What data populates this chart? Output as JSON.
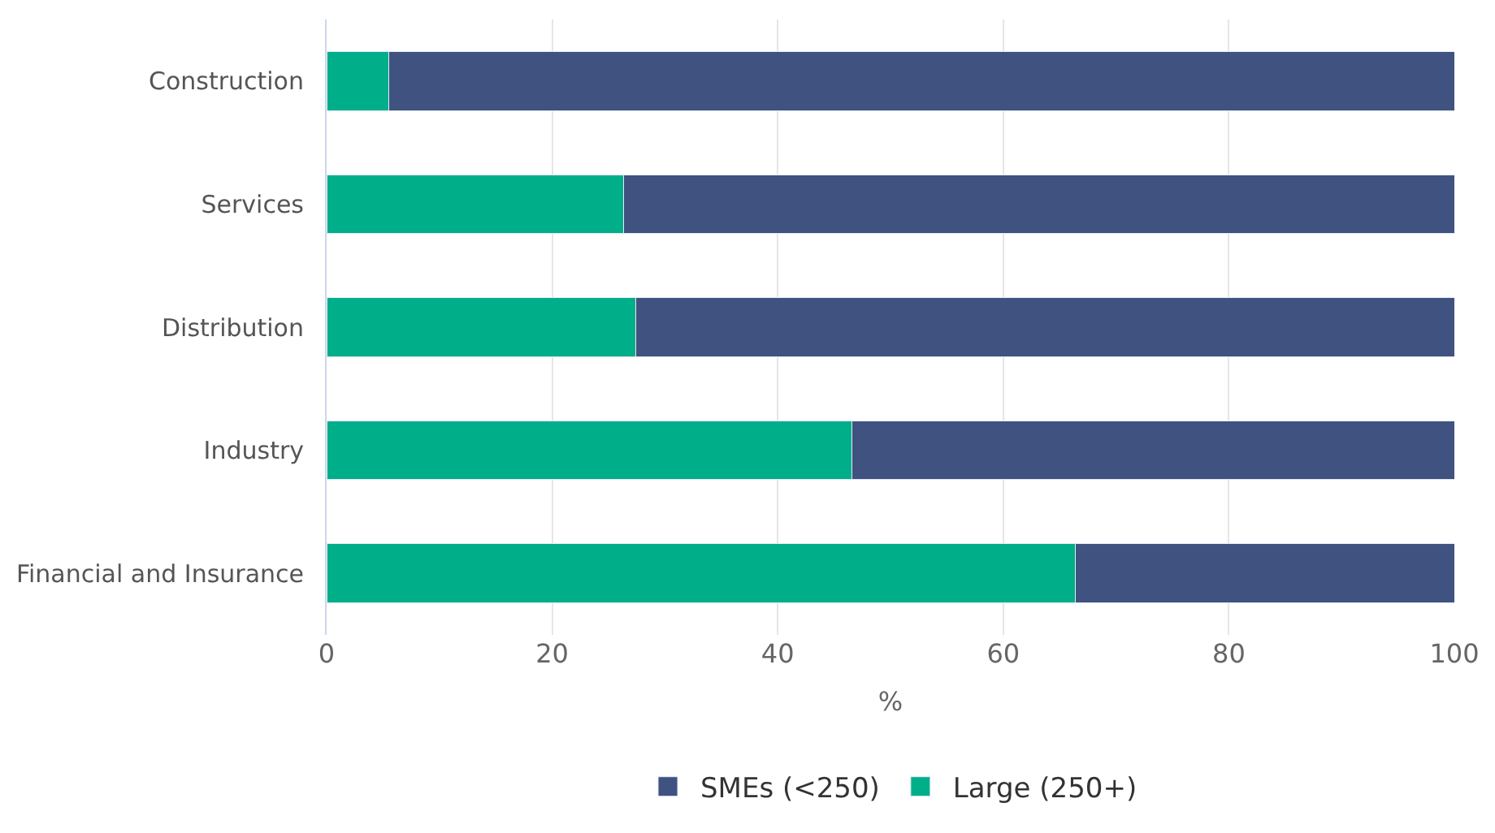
{
  "chart_data": {
    "type": "bar",
    "orientation": "horizontal",
    "stacked": true,
    "xlabel": "%",
    "categories": [
      "Construction",
      "Services",
      "Distribution",
      "Industry",
      "Financial and Insurance"
    ],
    "series": [
      {
        "name": "Large (250+)",
        "color": "#00ae8a",
        "values": [
          5.5,
          26.3,
          27.4,
          46.6,
          66.4
        ]
      },
      {
        "name": "SMEs (<250)",
        "color": "#3f5280",
        "values": [
          94.5,
          73.7,
          72.6,
          53.4,
          33.6
        ]
      }
    ],
    "xlim": [
      0,
      100
    ],
    "xticks": [
      0,
      20,
      40,
      60,
      80,
      100
    ],
    "grid": "x",
    "legend": "bottom"
  }
}
